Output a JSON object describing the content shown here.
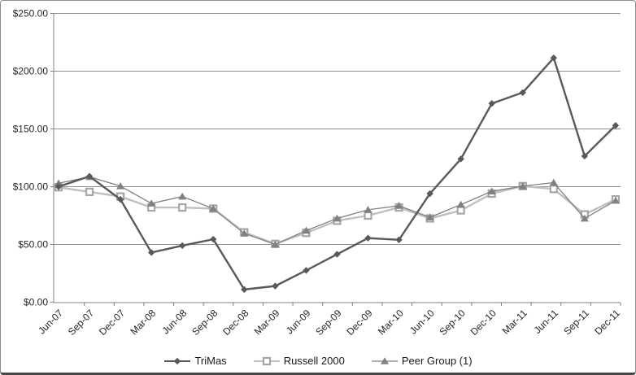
{
  "chart_data": {
    "type": "line",
    "title": "",
    "categories": [
      "Jun-07",
      "Sep-07",
      "Dec-07",
      "Mar-08",
      "Jun-08",
      "Sep-08",
      "Dec-08",
      "Mar-09",
      "Jun-09",
      "Sep-09",
      "Dec-09",
      "Mar-10",
      "Jun-10",
      "Sep-10",
      "Dec-10",
      "Mar-11",
      "Jun-11",
      "Sep-11",
      "Dec-11"
    ],
    "series": [
      {
        "name": "TriMas",
        "marker": "diamond",
        "line_color": "#595959",
        "marker_fill": "#595959",
        "line_width": 2.4,
        "values": [
          100,
          109,
          89,
          43,
          49,
          54.5,
          11,
          14,
          27.5,
          41.5,
          55.5,
          54,
          94,
          124,
          172,
          181.5,
          211.5,
          126.5,
          153
        ]
      },
      {
        "name": "Russell 2000",
        "marker": "open-square",
        "line_color": "#bfbfbf",
        "marker_fill": "#ffffff",
        "marker_stroke": "#a6a6a6",
        "line_width": 2.4,
        "values": [
          99.5,
          95.5,
          91.5,
          82,
          82,
          81,
          60.5,
          50.5,
          60,
          70.5,
          75,
          82,
          72.5,
          79.5,
          94,
          100.5,
          98,
          76,
          89
        ]
      },
      {
        "name": "Peer Group (1)",
        "marker": "triangle",
        "line_color": "#808080",
        "marker_fill": "#808080",
        "line_width": 1.3,
        "values": [
          103,
          108.5,
          100.5,
          85.5,
          91.5,
          81,
          59.5,
          50,
          62,
          72.5,
          80,
          83.5,
          73.5,
          84.5,
          96,
          100.5,
          103.5,
          72.5,
          88
        ]
      }
    ],
    "y_axis": {
      "min": 0,
      "max": 250,
      "step": 50,
      "tick_labels": [
        "$0.00",
        "$50.00",
        "$100.00",
        "$150.00",
        "$200.00",
        "$250.00"
      ]
    },
    "x_axis": {
      "tick_labels": [
        "Jun-07",
        "Sep-07",
        "Dec-07",
        "Mar-08",
        "Jun-08",
        "Sep-08",
        "Dec-08",
        "Mar-09",
        "Jun-09",
        "Sep-09",
        "Dec-09",
        "Mar-10",
        "Jun-10",
        "Sep-10",
        "Dec-10",
        "Mar-11",
        "Jun-11",
        "Sep-11",
        "Dec-11"
      ],
      "label_rotation": -45
    },
    "grid": true,
    "legend_position": "bottom-center",
    "colors": {
      "grid": "#8f8f8f",
      "axis": "#808080",
      "tick_text": "#262626",
      "legend_text": "#1a1a1a",
      "background": "#ffffff"
    }
  },
  "legend": {
    "items": [
      {
        "label": "TriMas"
      },
      {
        "label": "Russell 2000"
      },
      {
        "label": "Peer Group (1)"
      }
    ]
  }
}
